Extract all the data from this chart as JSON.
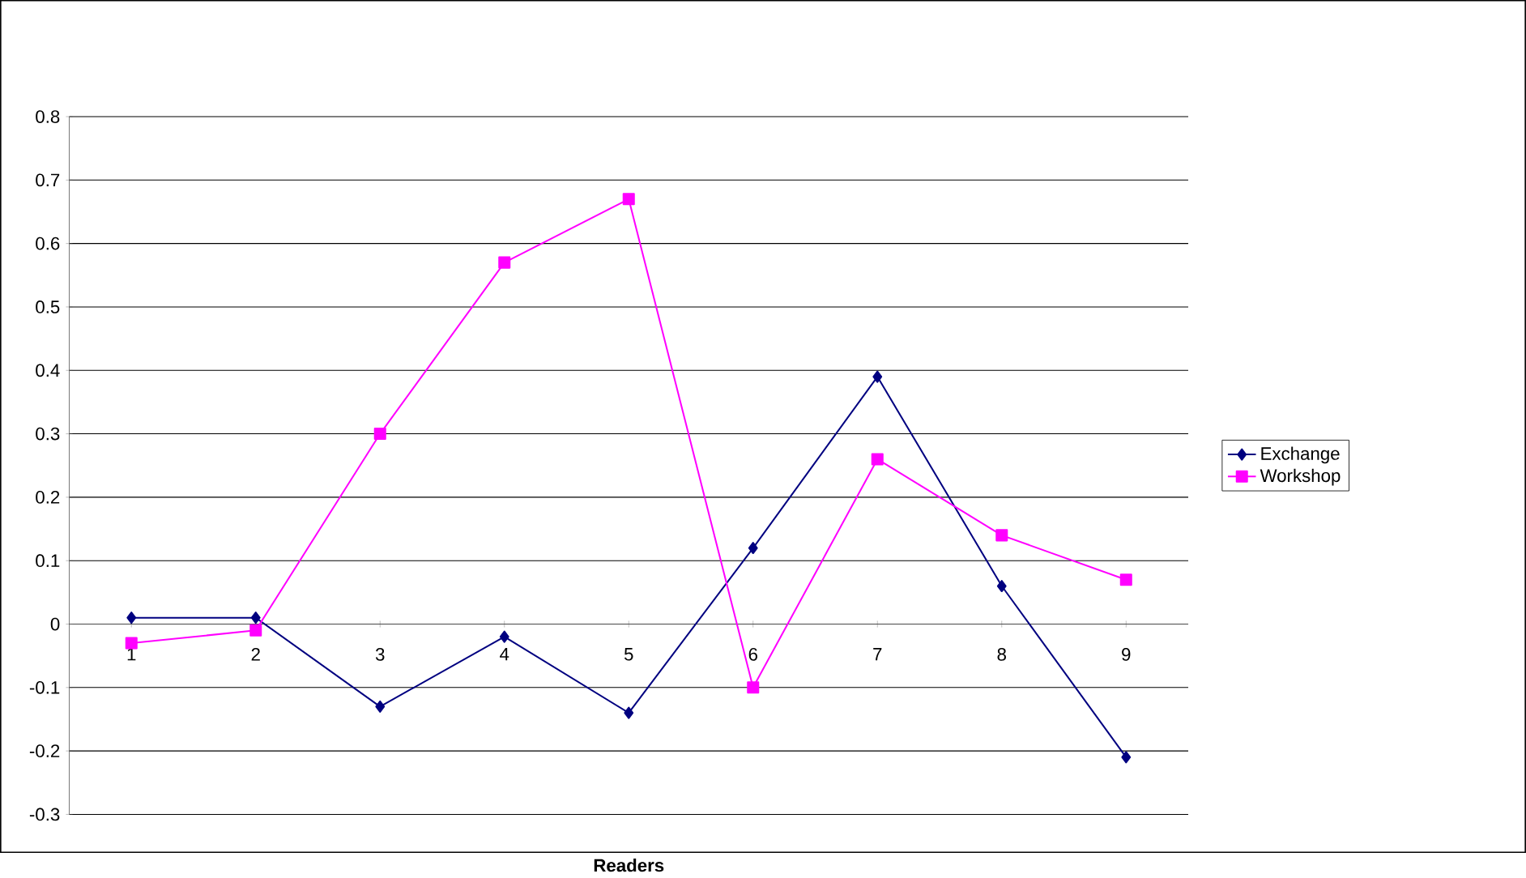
{
  "chart_data": {
    "type": "line",
    "xlabel": "Readers",
    "categories": [
      "1",
      "2",
      "3",
      "4",
      "5",
      "6",
      "7",
      "8",
      "9"
    ],
    "series": [
      {
        "name": "Exchange",
        "color": "#000080",
        "marker": "diamond",
        "values": [
          0.01,
          0.01,
          -0.13,
          -0.02,
          -0.14,
          0.12,
          0.39,
          0.06,
          -0.21
        ]
      },
      {
        "name": "Workshop",
        "color": "#ff00ff",
        "marker": "square",
        "values": [
          -0.03,
          -0.01,
          0.3,
          0.57,
          0.67,
          -0.1,
          0.26,
          0.14,
          0.07
        ]
      }
    ],
    "ylim": [
      -0.3,
      0.8
    ],
    "yticks": [
      -0.3,
      -0.2,
      -0.1,
      0,
      0.1,
      0.2,
      0.3,
      0.4,
      0.5,
      0.6,
      0.7,
      0.8
    ],
    "grid": "y",
    "legend": "right",
    "line_style": "solid"
  }
}
